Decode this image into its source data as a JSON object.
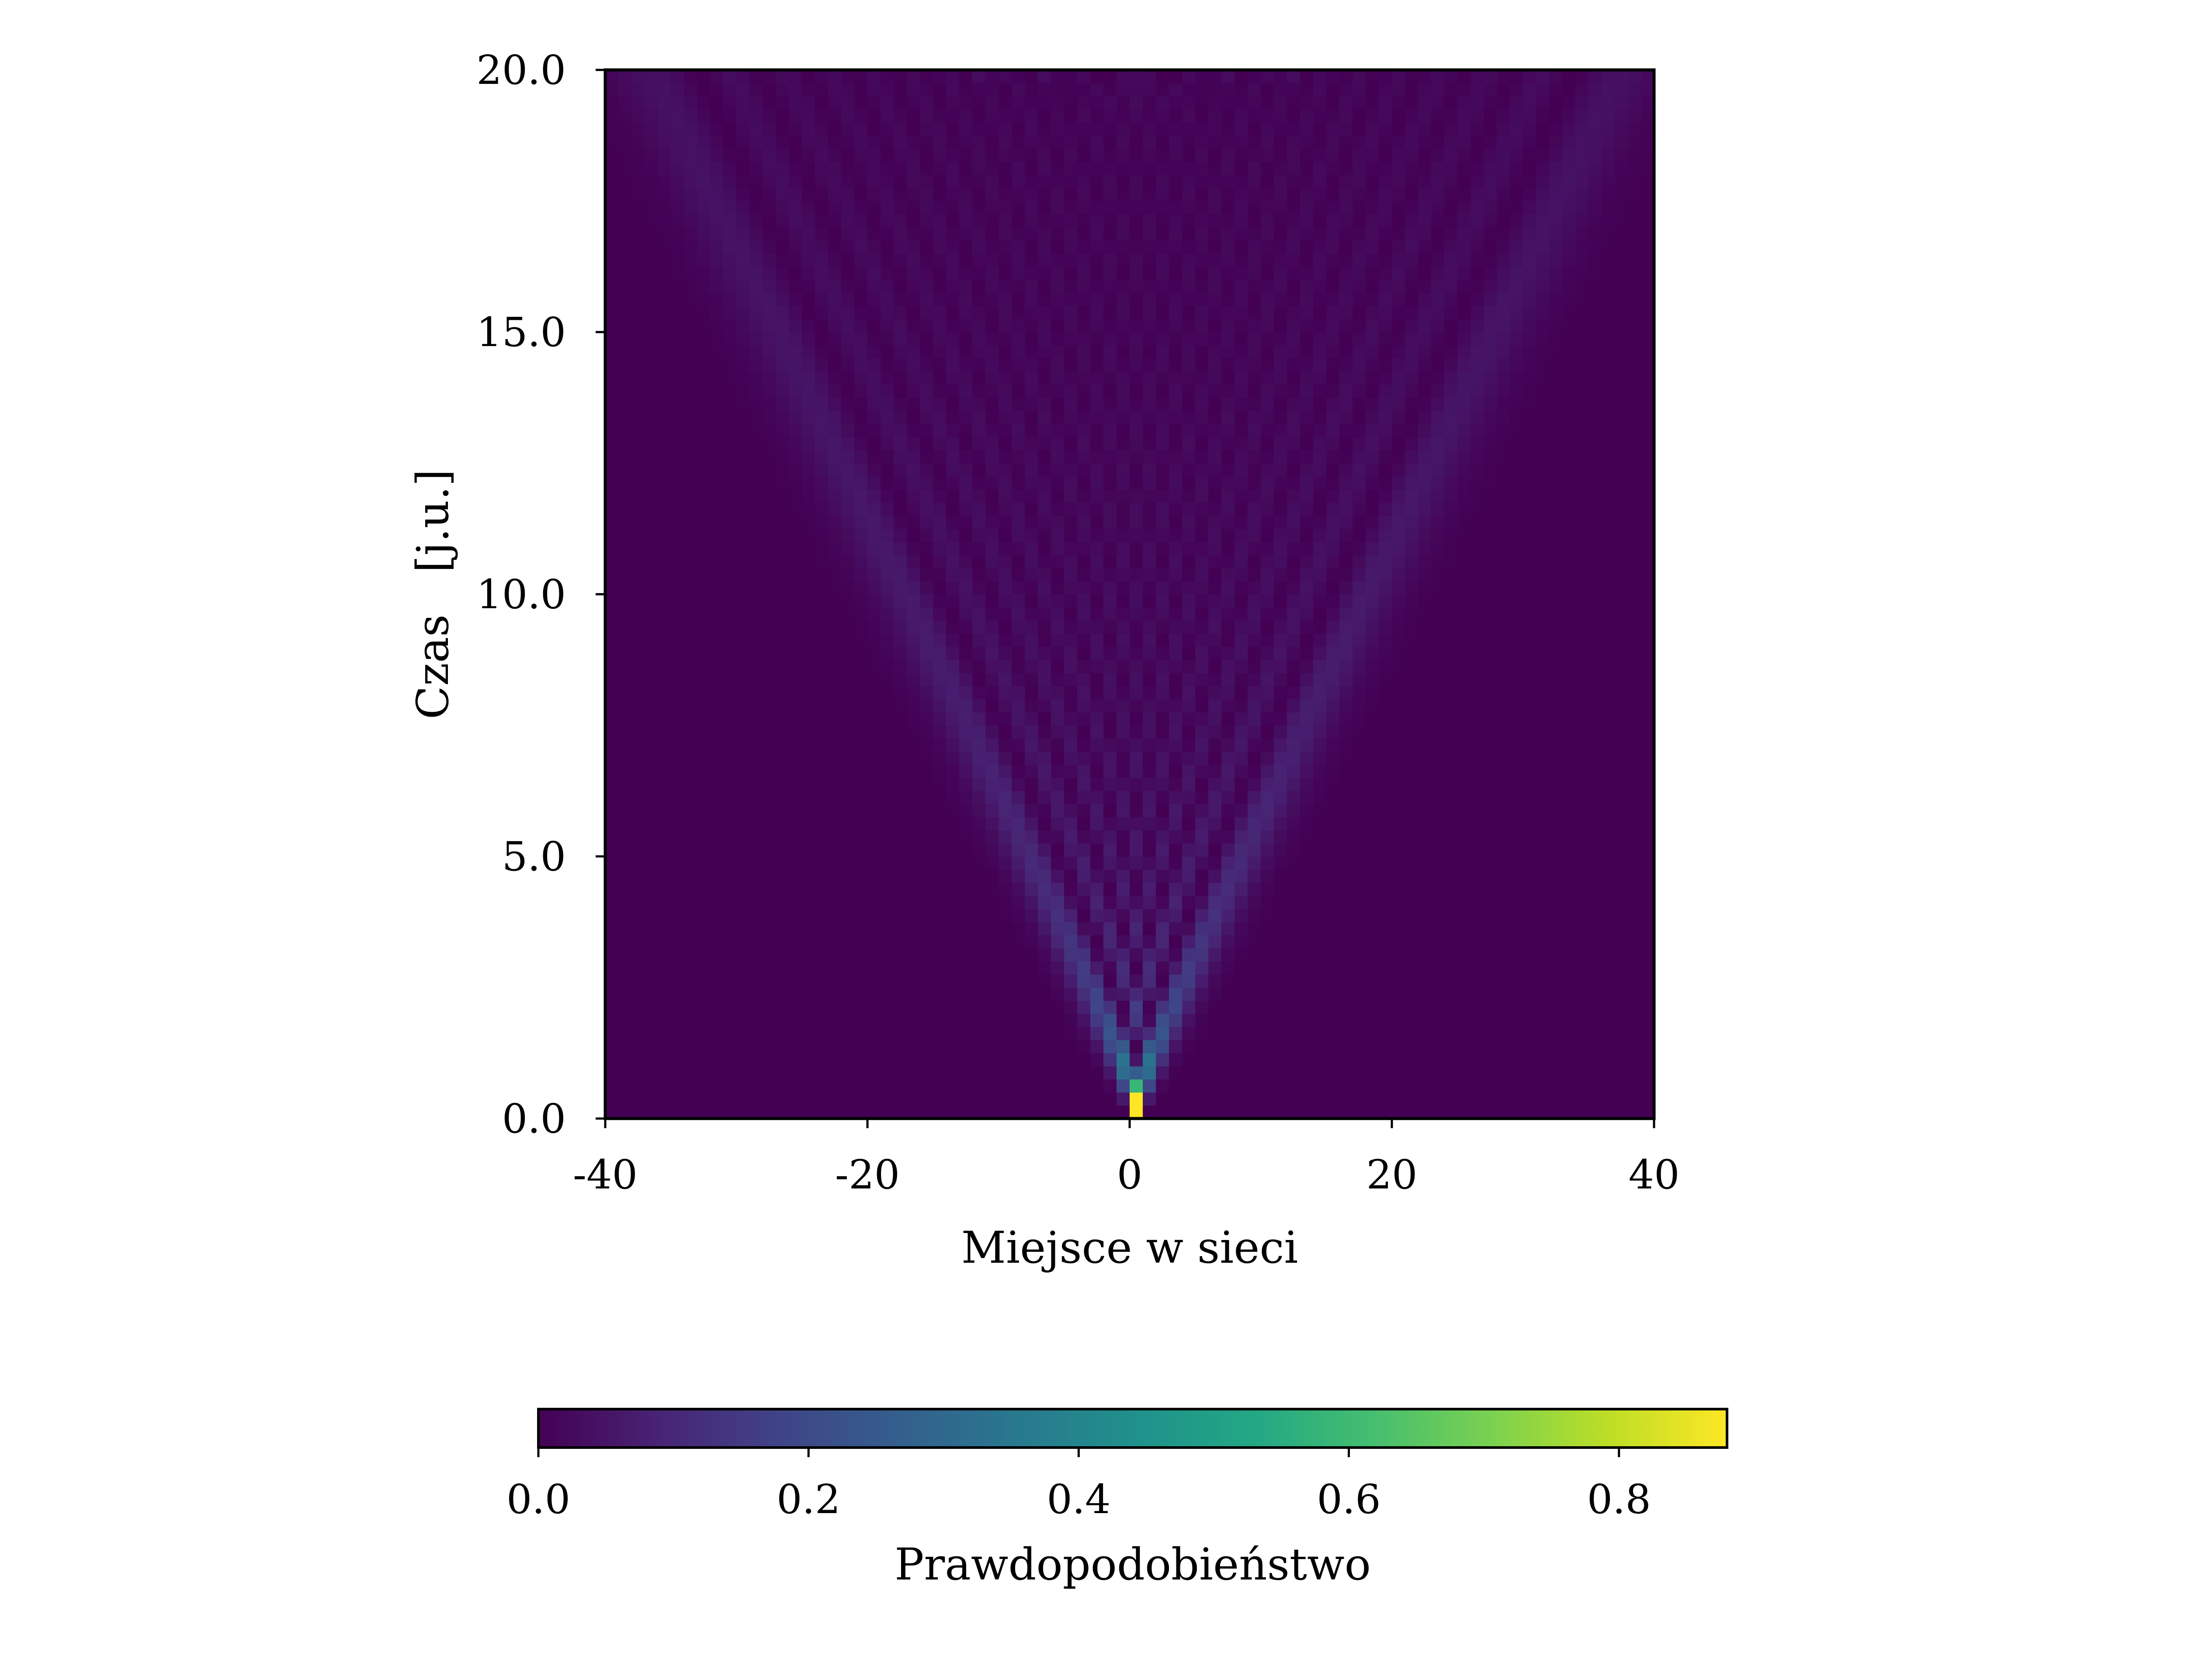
{
  "chart_data": {
    "type": "heatmap",
    "title": "",
    "xlabel": "Miejsce w sieci",
    "ylabel": "Czas   [j.u.]",
    "xlim": [
      -40,
      40
    ],
    "ylim": [
      0.0,
      20.0
    ],
    "x_ticks": [
      "-40",
      "-20",
      "0",
      "20",
      "40"
    ],
    "x_tick_values": [
      -40,
      -20,
      0,
      20,
      40
    ],
    "y_ticks": [
      "0.0",
      "5.0",
      "10.0",
      "15.0",
      "20.0"
    ],
    "y_tick_values": [
      0,
      5,
      10,
      15,
      20
    ],
    "x_sites": {
      "min": -40,
      "max": 39,
      "step": 1
    },
    "t_steps": {
      "min": 0.0,
      "max": 19.75,
      "step": 0.25
    },
    "initial_site": 0,
    "hopping": 1.0,
    "colorbar": {
      "label": "Prawdopodobieństwo",
      "range": [
        0.0,
        0.88
      ],
      "ticks": [
        "0.0",
        "0.2",
        "0.4",
        "0.6",
        "0.8"
      ],
      "tick_values": [
        0.0,
        0.2,
        0.4,
        0.6,
        0.8
      ],
      "colormap": "viridis",
      "placement": "bottom"
    },
    "grid": false,
    "colors": {
      "low": "#440154",
      "high": "#fde725",
      "frame": "#000000"
    }
  }
}
